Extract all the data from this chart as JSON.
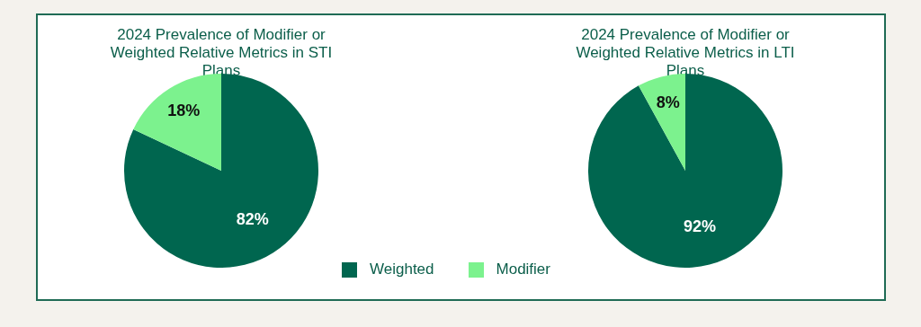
{
  "chart_data": [
    {
      "type": "pie",
      "title": "2024 Prevalence of Modifier or Weighted Relative Metrics in STI Plans",
      "categories": [
        "Weighted",
        "Modifier"
      ],
      "values": [
        82,
        18
      ],
      "colors": [
        "#00664f",
        "#7cf28e"
      ],
      "value_labels": [
        "82%",
        "18%"
      ],
      "legend": "bottom"
    },
    {
      "type": "pie",
      "title": "2024 Prevalence of Modifier or Weighted Relative Metrics in LTI Plans",
      "categories": [
        null,
        null
      ],
      "values": [
        92,
        8
      ],
      "colors": [
        "#00664f",
        "#7cf28e"
      ],
      "value_labels": [
        "92%",
        "8%"
      ]
    }
  ]
}
